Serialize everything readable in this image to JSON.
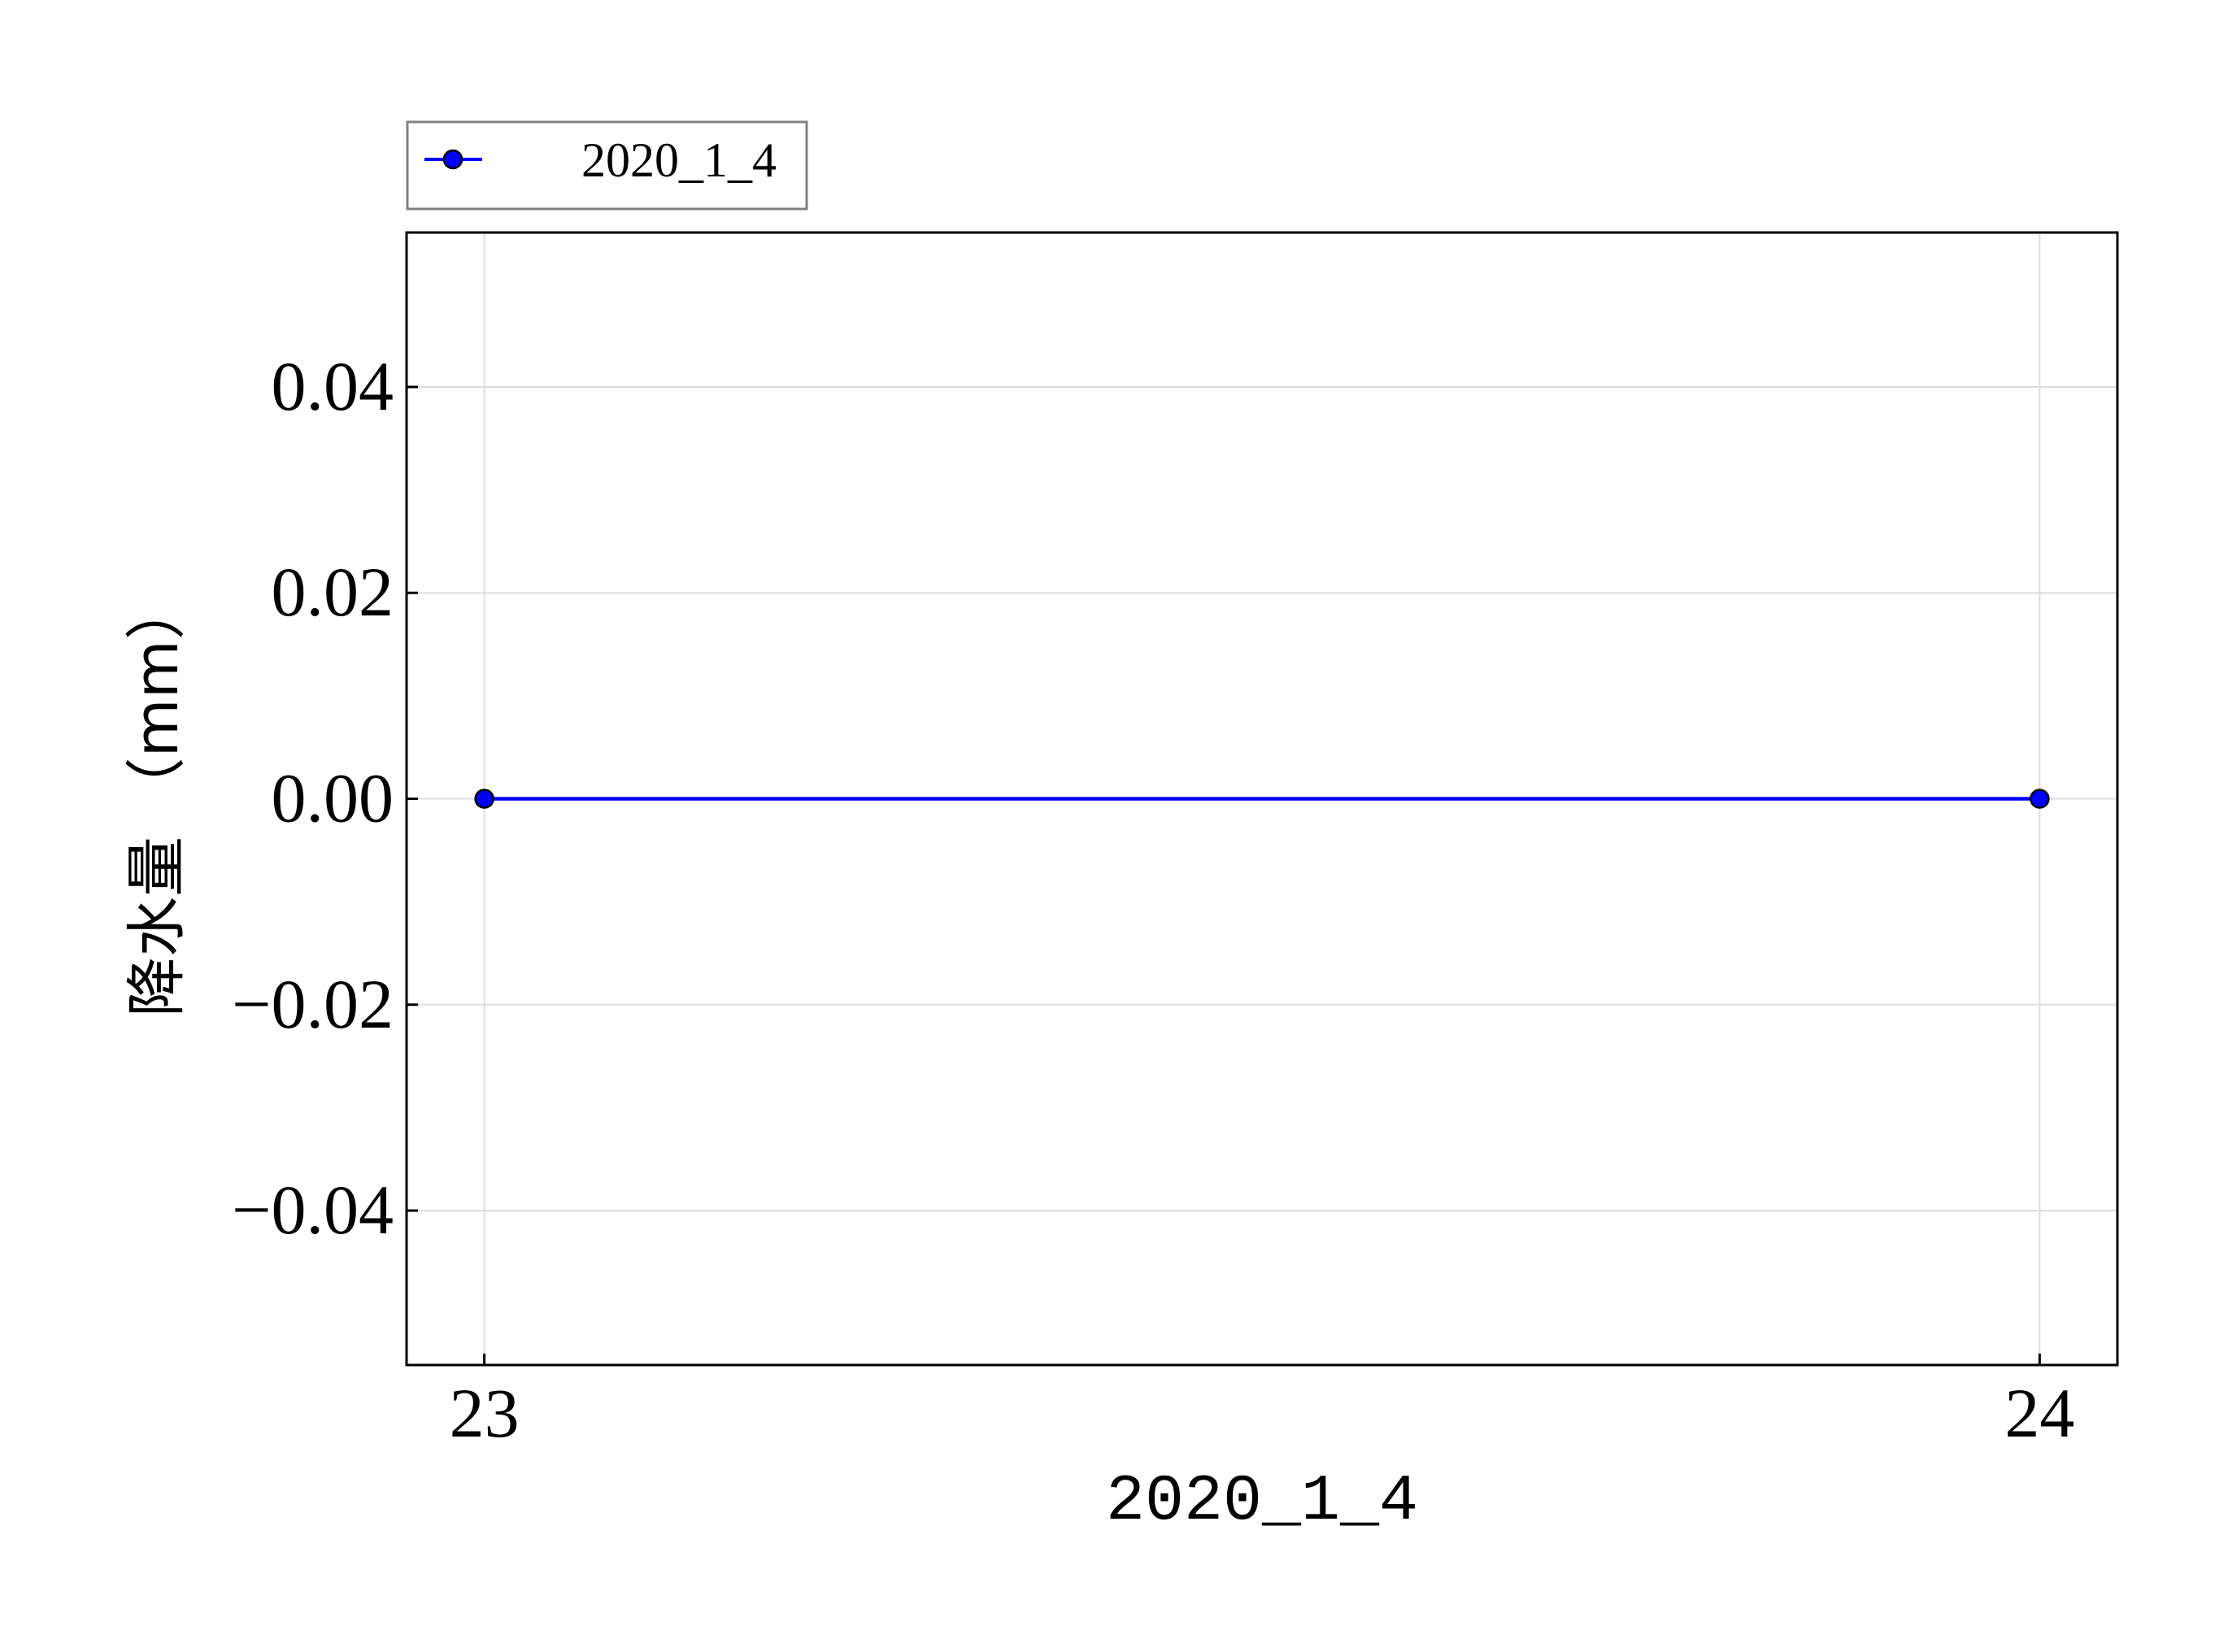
{
  "chart_data": {
    "type": "line",
    "title": "",
    "xlabel": "2020_1_4",
    "ylabel": "降水量 （mm）",
    "x": [
      23,
      24
    ],
    "x_ticks": [
      "23",
      "24"
    ],
    "xlim": [
      22.95,
      24.05
    ],
    "ylim": [
      -0.055,
      0.055
    ],
    "y_ticks": [
      0.04,
      0.02,
      0.0,
      -0.02,
      -0.04
    ],
    "y_tick_labels": [
      "0.04",
      "0.02",
      "0.00",
      "−0.02",
      "−0.04"
    ],
    "grid": true,
    "legend_position": "above-top-left",
    "series": [
      {
        "name": "2020_1_4",
        "values": [
          0,
          0
        ],
        "color": "#0000ff",
        "marker": "circle"
      }
    ]
  }
}
